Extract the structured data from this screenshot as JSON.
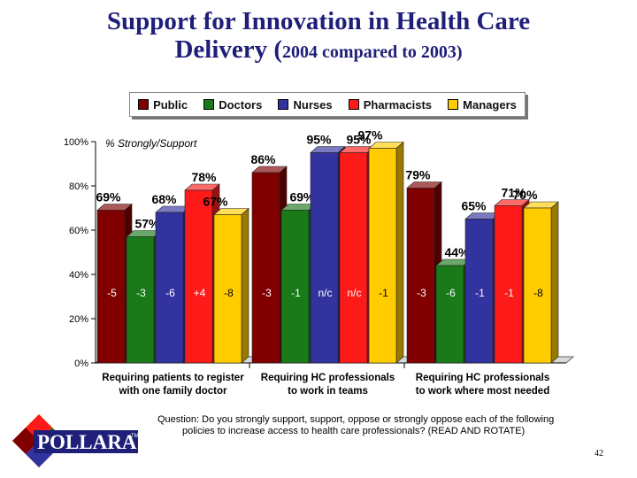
{
  "title": {
    "line1": "Support for Innovation in Health Care",
    "line2_main": "Delivery (",
    "line2_sub": "2004 compared to 2003)"
  },
  "legend": {
    "items": [
      {
        "label": "Public",
        "color": "#800000"
      },
      {
        "label": "Doctors",
        "color": "#1a7a1a"
      },
      {
        "label": "Nurses",
        "color": "#3333a0"
      },
      {
        "label": "Pharmacists",
        "color": "#ff1a1a"
      },
      {
        "label": "Managers",
        "color": "#ffcc00"
      }
    ]
  },
  "chart_data": {
    "type": "bar",
    "ylabel": "% Strongly/Support",
    "ylim": [
      0,
      100
    ],
    "yticks": [
      "0%",
      "20%",
      "40%",
      "60%",
      "80%",
      "100%"
    ],
    "groups": [
      {
        "label_line1": "Requiring patients to register",
        "label_line2": "with one family doctor",
        "bars": [
          {
            "series": "Public",
            "value": 69,
            "label": "69%",
            "change": "-5"
          },
          {
            "series": "Doctors",
            "value": 57,
            "label": "57%",
            "change": "-3"
          },
          {
            "series": "Nurses",
            "value": 68,
            "label": "68%",
            "change": "-6"
          },
          {
            "series": "Pharmacists",
            "value": 78,
            "label": "78%",
            "change": "+4"
          },
          {
            "series": "Managers",
            "value": 67,
            "label": "67%",
            "change": "-8"
          }
        ]
      },
      {
        "label_line1": "Requiring HC professionals",
        "label_line2": "to work in teams",
        "bars": [
          {
            "series": "Public",
            "value": 86,
            "label": "86%",
            "change": "-3"
          },
          {
            "series": "Doctors",
            "value": 69,
            "label": "69%",
            "change": "-1"
          },
          {
            "series": "Nurses",
            "value": 95,
            "label": "95%",
            "change": "n/c"
          },
          {
            "series": "Pharmacists",
            "value": 95,
            "label": "95%",
            "change": "n/c"
          },
          {
            "series": "Managers",
            "value": 97,
            "label": "97%",
            "change": "-1"
          }
        ]
      },
      {
        "label_line1": "Requiring HC professionals",
        "label_line2": "to work where most needed",
        "bars": [
          {
            "series": "Public",
            "value": 79,
            "label": "79%",
            "change": "-3"
          },
          {
            "series": "Doctors",
            "value": 44,
            "label": "44%",
            "change": "-6"
          },
          {
            "series": "Nurses",
            "value": 65,
            "label": "65%",
            "change": "-1"
          },
          {
            "series": "Pharmacists",
            "value": 71,
            "label": "71%",
            "change": "-1"
          },
          {
            "series": "Managers",
            "value": 70,
            "label": "70%",
            "change": "-8"
          }
        ]
      }
    ]
  },
  "question": {
    "line1": "Question: Do you strongly support, support, oppose or strongly oppose each of the following",
    "line2": "policies to increase access to health care professionals? (READ AND ROTATE)"
  },
  "logo": {
    "text": "POLLARA",
    "tm": "TM"
  },
  "page_number": "42"
}
